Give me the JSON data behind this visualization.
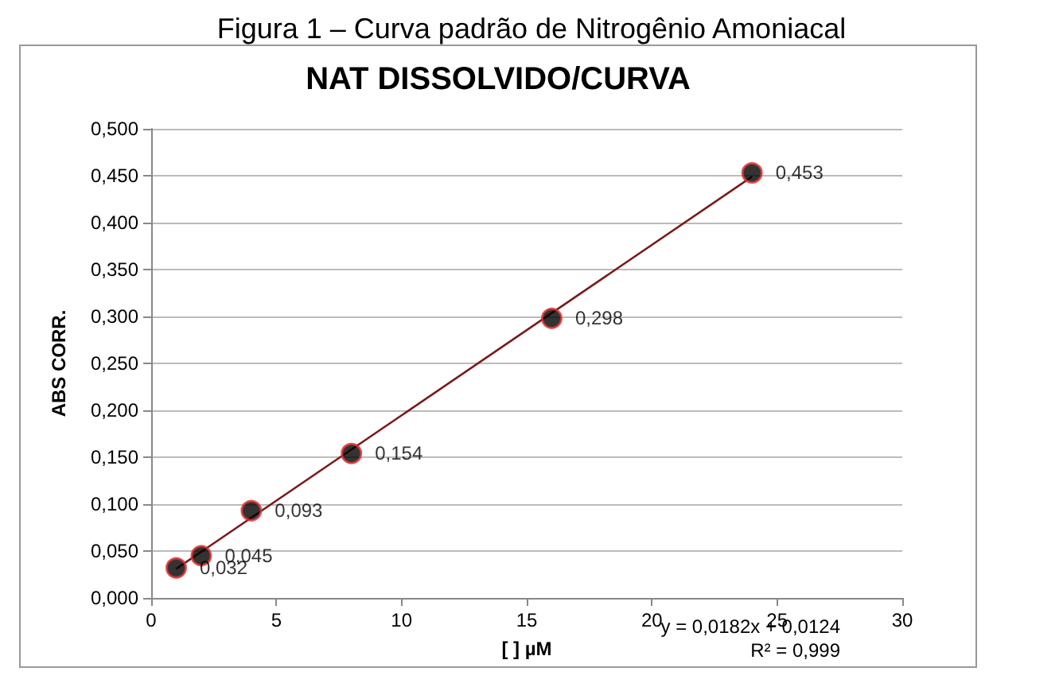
{
  "chart_data": {
    "type": "scatter",
    "title": "NAT DISSOLVIDO/CURVA",
    "xlabel": "[ ] µM",
    "ylabel": "ABS CORR.",
    "annotations": [
      "Figura 1 – Curva padrão de Nitrogênio Amoniacal",
      "y = 0,0182x + 0,0124",
      "R² = 0,999"
    ],
    "series": [
      {
        "color": "#000000",
        "marker": "circle",
        "x": [
          1,
          2,
          4,
          8,
          16,
          24
        ],
        "values": [
          0.032,
          0.045,
          0.093,
          0.154,
          0.298,
          0.453
        ],
        "value_labels": [
          "0,032",
          "0,045",
          "0,093",
          "0,154",
          "0,298",
          "0,453"
        ]
      },
      {
        "type": "line",
        "color": "#7a1a1a",
        "x": [
          1,
          24
        ],
        "values": [
          0.031,
          0.449
        ]
      }
    ],
    "xlim": [
      0,
      30
    ],
    "xticks": [
      0,
      5,
      10,
      15,
      20,
      25,
      30
    ],
    "ylim": [
      0,
      0.5
    ],
    "yticks": [
      {
        "value": 0,
        "label": "0,000"
      },
      {
        "value": 0.05,
        "label": "0,050"
      },
      {
        "value": 0.1,
        "label": "0,100"
      },
      {
        "value": 0.15,
        "label": "0,150"
      },
      {
        "value": 0.2,
        "label": "0,200"
      },
      {
        "value": 0.25,
        "label": "0,250"
      },
      {
        "value": 0.3,
        "label": "0,300"
      },
      {
        "value": 0.35,
        "label": "0,350"
      },
      {
        "value": 0.4,
        "label": "0,400"
      },
      {
        "value": 0.45,
        "label": "0,450"
      },
      {
        "value": 0.5,
        "label": "0,500"
      }
    ],
    "grid": "y"
  }
}
